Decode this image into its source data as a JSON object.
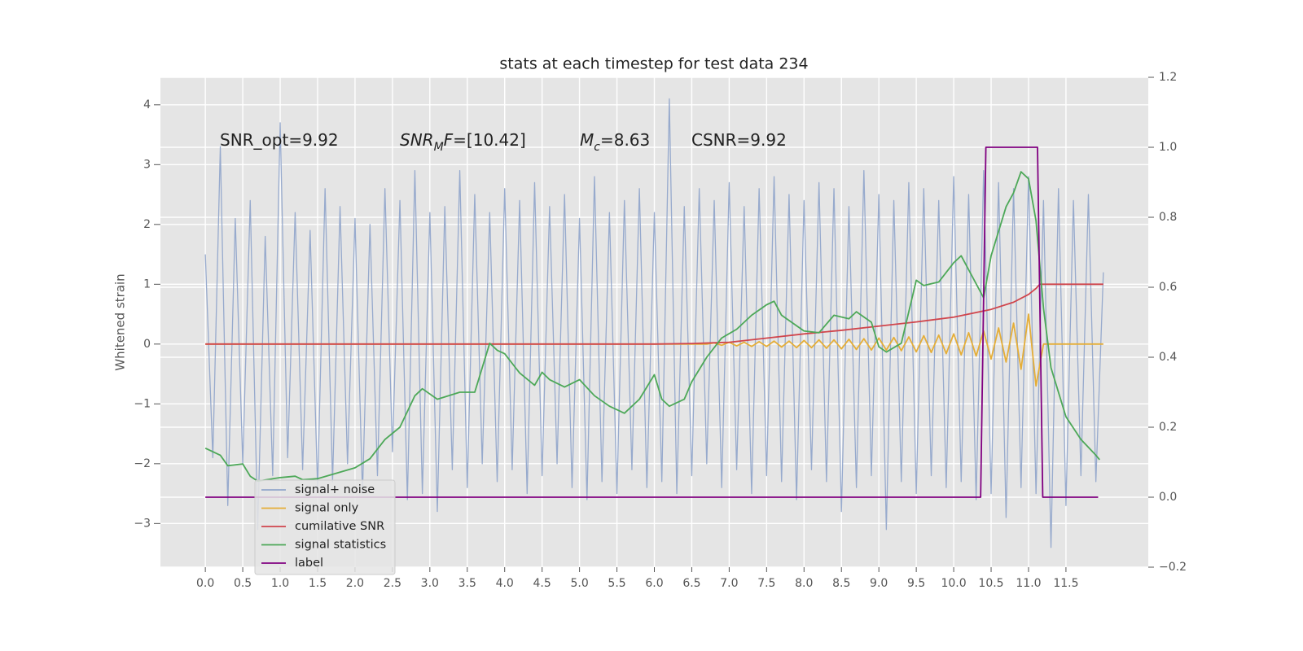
{
  "chart_data": {
    "type": "line",
    "title": "stats at each timestep for test data 234",
    "ylabel": "Whitened strain",
    "grid": true,
    "legend_loc": "lower left",
    "xlim": [
      -0.6,
      12.6
    ],
    "ylim": [
      -3.73,
      4.46
    ],
    "y2lim": [
      -0.2,
      1.2
    ],
    "xticks": [
      {
        "value": 0,
        "label": "0.0"
      },
      0.5,
      {
        "value": 1,
        "label": "1.0"
      },
      1.5,
      {
        "value": 2,
        "label": "2.0"
      },
      2.5,
      {
        "value": 3,
        "label": "3.0"
      },
      3.5,
      {
        "value": 4,
        "label": "4.0"
      },
      4.5,
      {
        "value": 5,
        "label": "5.0"
      },
      5.5,
      {
        "value": 6,
        "label": "6.0"
      },
      6.5,
      {
        "value": 7,
        "label": "7.0"
      },
      7.5,
      {
        "value": 8,
        "label": "8.0"
      },
      8.5,
      {
        "value": 9,
        "label": "9.0"
      },
      9.5,
      {
        "value": 10,
        "label": "10.0"
      },
      10.5,
      {
        "value": 11,
        "label": "11.0"
      },
      11.5
    ],
    "yticks": [
      {
        "value": -3,
        "label": "−3"
      },
      {
        "value": -2,
        "label": "−2"
      },
      {
        "value": -1,
        "label": "−1"
      },
      0,
      1,
      2,
      3,
      4
    ],
    "y2ticks": [
      {
        "value": -0.2,
        "label": "−0.2"
      },
      {
        "value": 0,
        "label": "0.0"
      },
      0.2,
      0.4,
      0.6,
      0.8,
      {
        "value": 1,
        "label": "1.0"
      },
      1.2
    ],
    "annotations": [
      {
        "parts": [
          {
            "text": "SNR_opt=9.92",
            "style": "normal"
          }
        ]
      },
      {
        "parts": [
          {
            "text": "SNR",
            "style": "italic"
          },
          {
            "text": "M",
            "style": "sub"
          },
          {
            "text": "F",
            "style": "italic"
          },
          {
            "text": "=[10.42]",
            "style": "normal"
          }
        ]
      },
      {
        "parts": [
          {
            "text": "M",
            "style": "italic"
          },
          {
            "text": "c",
            "style": "sub"
          },
          {
            "text": "=8.63",
            "style": "normal"
          }
        ]
      },
      {
        "parts": [
          {
            "text": "CSNR=9.92",
            "style": "normal"
          }
        ]
      }
    ],
    "x": [
      0,
      0.1,
      0.2,
      0.3,
      0.4,
      0.5,
      0.6,
      0.7,
      0.8,
      0.9,
      1,
      1.1,
      1.2,
      1.3,
      1.4,
      1.5,
      1.6,
      1.7,
      1.8,
      1.9,
      2,
      2.1,
      2.2,
      2.3,
      2.4,
      2.5,
      2.6,
      2.7,
      2.8,
      2.9,
      3,
      3.1,
      3.2,
      3.3,
      3.4,
      3.5,
      3.6,
      3.7,
      3.8,
      3.9,
      4,
      4.1,
      4.2,
      4.3,
      4.4,
      4.5,
      4.6,
      4.7,
      4.8,
      4.9,
      5,
      5.1,
      5.2,
      5.3,
      5.4,
      5.5,
      5.6,
      5.7,
      5.8,
      5.9,
      6,
      6.1,
      6.2,
      6.3,
      6.4,
      6.5,
      6.6,
      6.7,
      6.8,
      6.9,
      7,
      7.1,
      7.2,
      7.3,
      7.4,
      7.5,
      7.6,
      7.7,
      7.8,
      7.9,
      8,
      8.1,
      8.2,
      8.3,
      8.4,
      8.5,
      8.6,
      8.7,
      8.8,
      8.9,
      9,
      9.1,
      9.2,
      9.3,
      9.4,
      9.5,
      9.6,
      9.7,
      9.8,
      9.9,
      10,
      10.1,
      10.2,
      10.3,
      10.4,
      10.5,
      10.6,
      10.7,
      10.8,
      10.9,
      11,
      11.1,
      11.2,
      11.3,
      11.4,
      11.5,
      11.6,
      11.7,
      11.8,
      11.9,
      12
    ],
    "series": [
      {
        "name": "signal+ noise",
        "color": "#92a6cb",
        "axis": "y",
        "values": [
          1.5,
          -1.9,
          3.3,
          -2.7,
          2.1,
          -2.0,
          2.4,
          -3.1,
          1.8,
          -2.2,
          3.7,
          -1.9,
          2.2,
          -2.1,
          1.9,
          -2.4,
          2.6,
          -2.3,
          2.3,
          -2.0,
          2.1,
          -2.5,
          2.0,
          -2.2,
          2.6,
          -1.8,
          2.4,
          -2.6,
          2.9,
          -2.5,
          2.2,
          -2.8,
          2.3,
          -2.1,
          2.9,
          -2.4,
          2.5,
          -2.0,
          2.2,
          -2.3,
          2.6,
          -2.1,
          2.4,
          -2.5,
          2.7,
          -2.2,
          2.3,
          -2.0,
          2.5,
          -2.4,
          2.1,
          -2.6,
          2.8,
          -2.3,
          2.2,
          -2.5,
          2.4,
          -2.1,
          2.6,
          -2.4,
          2.2,
          -2.3,
          4.1,
          -2.5,
          2.3,
          -2.2,
          2.6,
          -2.0,
          2.4,
          -2.4,
          2.7,
          -2.1,
          2.3,
          -2.5,
          2.6,
          -2.2,
          2.8,
          -2.3,
          2.5,
          -2.6,
          2.4,
          -2.1,
          2.7,
          -2.3,
          2.6,
          -2.8,
          2.3,
          -2.4,
          2.9,
          -2.2,
          2.5,
          -3.1,
          2.4,
          -2.3,
          2.7,
          -2.5,
          2.6,
          -2.2,
          2.4,
          -2.4,
          2.8,
          -2.3,
          2.5,
          -2.6,
          2.9,
          -2.5,
          2.7,
          -2.9,
          2.6,
          -2.4,
          2.8,
          -2.5,
          2.4,
          -3.4,
          2.6,
          -2.7,
          2.4,
          -2.2,
          2.5,
          -2.3,
          1.2
        ]
      },
      {
        "name": "signal only",
        "color": "#e5ae38",
        "axis": "y",
        "values": [
          0,
          0,
          0,
          0,
          0,
          0,
          0,
          0,
          0,
          0,
          0,
          0,
          0,
          0,
          0,
          0,
          0,
          0,
          0,
          0,
          0,
          0,
          0,
          0,
          0,
          0,
          0,
          0,
          0,
          0,
          0,
          0,
          0,
          0,
          0,
          0,
          0,
          0,
          0,
          0,
          0,
          0,
          0,
          0,
          0,
          0,
          0,
          0,
          0,
          0,
          0,
          0,
          0,
          0,
          0,
          0,
          0,
          0,
          0,
          0,
          0,
          0,
          0,
          0,
          0,
          0,
          0,
          0,
          0.02,
          -0.02,
          0.03,
          -0.03,
          0.03,
          -0.04,
          0.04,
          -0.04,
          0.05,
          -0.05,
          0.05,
          -0.06,
          0.06,
          -0.06,
          0.07,
          -0.07,
          0.07,
          -0.08,
          0.08,
          -0.09,
          0.09,
          -0.1,
          0.1,
          -0.1,
          0.11,
          -0.11,
          0.12,
          -0.13,
          0.14,
          -0.14,
          0.15,
          -0.16,
          0.17,
          -0.18,
          0.19,
          -0.2,
          0.22,
          -0.25,
          0.27,
          -0.3,
          0.35,
          -0.42,
          0.5,
          -0.7,
          0,
          0,
          0,
          0,
          0,
          0,
          0,
          0,
          0
        ]
      },
      {
        "name": "cumilative SNR",
        "color": "#d0454c",
        "axis": "y",
        "x": [
          0,
          6.0,
          6.5,
          7.0,
          7.5,
          8.0,
          8.5,
          9.0,
          9.5,
          10.0,
          10.5,
          10.8,
          11.0,
          11.1,
          11.15,
          12.0
        ],
        "values": [
          0,
          0,
          0.01,
          0.03,
          0.1,
          0.17,
          0.23,
          0.3,
          0.37,
          0.45,
          0.58,
          0.7,
          0.83,
          0.93,
          1.0,
          1.0
        ]
      },
      {
        "name": "signal statistics",
        "color": "#4da858",
        "axis": "y2",
        "x": [
          0,
          0.2,
          0.3,
          0.5,
          0.6,
          0.7,
          1.0,
          1.2,
          1.3,
          1.5,
          2.0,
          2.2,
          2.4,
          2.6,
          2.8,
          2.9,
          3.1,
          3.4,
          3.6,
          3.7,
          3.8,
          3.9,
          4.0,
          4.2,
          4.4,
          4.5,
          4.6,
          4.8,
          5.0,
          5.2,
          5.4,
          5.6,
          5.8,
          6.0,
          6.1,
          6.2,
          6.4,
          6.5,
          6.7,
          6.9,
          7.1,
          7.3,
          7.5,
          7.6,
          7.7,
          8.0,
          8.2,
          8.4,
          8.6,
          8.7,
          8.9,
          9.0,
          9.1,
          9.3,
          9.5,
          9.6,
          9.8,
          10.0,
          10.1,
          10.2,
          10.4,
          10.5,
          10.7,
          10.8,
          10.9,
          11.0,
          11.1,
          11.2,
          11.3,
          11.5,
          11.7,
          11.9,
          11.95
        ],
        "values": [
          0.14,
          0.12,
          0.09,
          0.095,
          0.06,
          0.046,
          0.056,
          0.06,
          0.05,
          0.053,
          0.084,
          0.11,
          0.165,
          0.2,
          0.29,
          0.31,
          0.28,
          0.3,
          0.3,
          0.37,
          0.44,
          0.42,
          0.41,
          0.355,
          0.32,
          0.357,
          0.336,
          0.315,
          0.336,
          0.29,
          0.26,
          0.24,
          0.28,
          0.35,
          0.28,
          0.26,
          0.28,
          0.33,
          0.4,
          0.455,
          0.48,
          0.52,
          0.55,
          0.56,
          0.52,
          0.475,
          0.47,
          0.52,
          0.51,
          0.53,
          0.5,
          0.43,
          0.415,
          0.44,
          0.62,
          0.605,
          0.615,
          0.67,
          0.69,
          0.65,
          0.57,
          0.69,
          0.83,
          0.87,
          0.93,
          0.91,
          0.79,
          0.54,
          0.37,
          0.23,
          0.165,
          0.12,
          0.107
        ]
      },
      {
        "name": "label",
        "color": "#800080",
        "axis": "y2",
        "x": [
          0,
          10.36,
          10.43,
          11.12,
          11.19,
          11.93
        ],
        "values": [
          0,
          0,
          1,
          1,
          0,
          0
        ]
      }
    ]
  }
}
